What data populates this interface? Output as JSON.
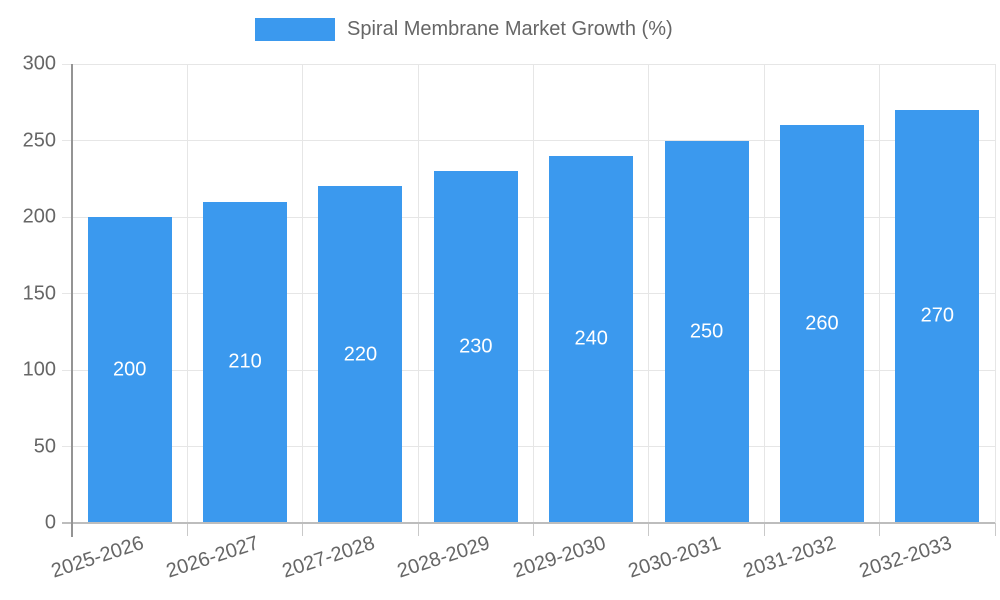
{
  "chart_data": {
    "type": "bar",
    "title": "Spiral Membrane Market Growth (%)",
    "categories": [
      "2025-2026",
      "2026-2027",
      "2027-2028",
      "2028-2029",
      "2029-2030",
      "2030-2031",
      "2031-2032",
      "2032-2033"
    ],
    "values": [
      200,
      210,
      220,
      230,
      240,
      250,
      260,
      270
    ],
    "value_labels": [
      "200",
      "210",
      "220",
      "230",
      "240",
      "250",
      "260",
      "270"
    ],
    "xlabel": "",
    "ylabel": "",
    "ylim": [
      0,
      300
    ],
    "yticks": [
      0,
      50,
      100,
      150,
      200,
      250,
      300
    ],
    "ytick_labels": [
      "0",
      "50",
      "100",
      "150",
      "200",
      "250",
      "300"
    ],
    "grid": true,
    "legend_position": "top",
    "colors": {
      "bar": "#3b99ee",
      "bar_value_text": "#ffffff",
      "axis_text": "#666666",
      "gridline": "#e6e6e6",
      "y_axis_line": "#949494",
      "x_axis_line": "#bdbdbd",
      "tick_mark": "#c9c9c9",
      "background": "#ffffff"
    }
  }
}
